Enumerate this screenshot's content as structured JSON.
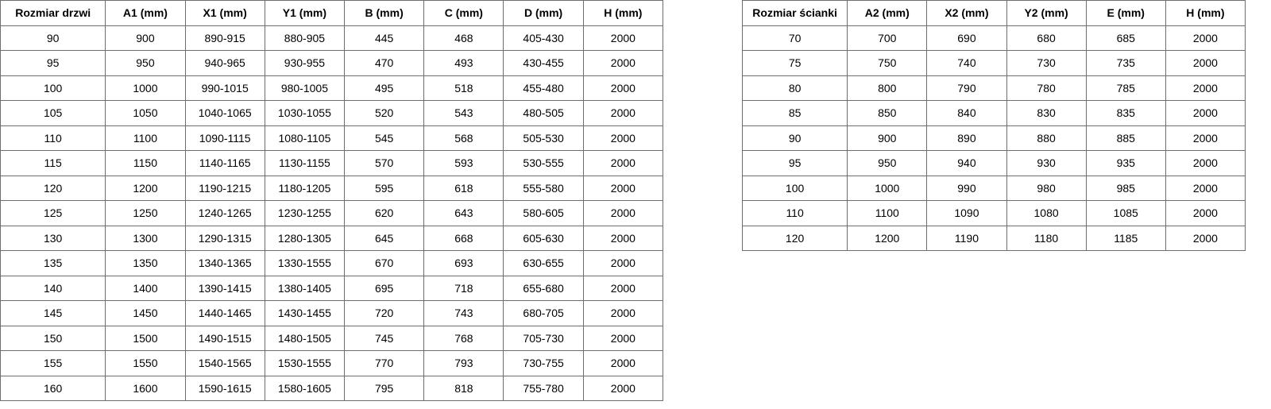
{
  "door_table": {
    "headers": [
      "Rozmiar drzwi",
      "A1 (mm)",
      "X1 (mm)",
      "Y1 (mm)",
      "B (mm)",
      "C (mm)",
      "D (mm)",
      "H (mm)"
    ],
    "rows": [
      [
        "90",
        "900",
        "890-915",
        "880-905",
        "445",
        "468",
        "405-430",
        "2000"
      ],
      [
        "95",
        "950",
        "940-965",
        "930-955",
        "470",
        "493",
        "430-455",
        "2000"
      ],
      [
        "100",
        "1000",
        "990-1015",
        "980-1005",
        "495",
        "518",
        "455-480",
        "2000"
      ],
      [
        "105",
        "1050",
        "1040-1065",
        "1030-1055",
        "520",
        "543",
        "480-505",
        "2000"
      ],
      [
        "110",
        "1100",
        "1090-1115",
        "1080-1105",
        "545",
        "568",
        "505-530",
        "2000"
      ],
      [
        "115",
        "1150",
        "1140-1165",
        "1130-1155",
        "570",
        "593",
        "530-555",
        "2000"
      ],
      [
        "120",
        "1200",
        "1190-1215",
        "1180-1205",
        "595",
        "618",
        "555-580",
        "2000"
      ],
      [
        "125",
        "1250",
        "1240-1265",
        "1230-1255",
        "620",
        "643",
        "580-605",
        "2000"
      ],
      [
        "130",
        "1300",
        "1290-1315",
        "1280-1305",
        "645",
        "668",
        "605-630",
        "2000"
      ],
      [
        "135",
        "1350",
        "1340-1365",
        "1330-1555",
        "670",
        "693",
        "630-655",
        "2000"
      ],
      [
        "140",
        "1400",
        "1390-1415",
        "1380-1405",
        "695",
        "718",
        "655-680",
        "2000"
      ],
      [
        "145",
        "1450",
        "1440-1465",
        "1430-1455",
        "720",
        "743",
        "680-705",
        "2000"
      ],
      [
        "150",
        "1500",
        "1490-1515",
        "1480-1505",
        "745",
        "768",
        "705-730",
        "2000"
      ],
      [
        "155",
        "1550",
        "1540-1565",
        "1530-1555",
        "770",
        "793",
        "730-755",
        "2000"
      ],
      [
        "160",
        "1600",
        "1590-1615",
        "1580-1605",
        "795",
        "818",
        "755-780",
        "2000"
      ]
    ]
  },
  "wall_table": {
    "headers": [
      "Rozmiar ścianki",
      "A2 (mm)",
      "X2 (mm)",
      "Y2 (mm)",
      "E (mm)",
      "H (mm)"
    ],
    "rows": [
      [
        "70",
        "700",
        "690",
        "680",
        "685",
        "2000"
      ],
      [
        "75",
        "750",
        "740",
        "730",
        "735",
        "2000"
      ],
      [
        "80",
        "800",
        "790",
        "780",
        "785",
        "2000"
      ],
      [
        "85",
        "850",
        "840",
        "830",
        "835",
        "2000"
      ],
      [
        "90",
        "900",
        "890",
        "880",
        "885",
        "2000"
      ],
      [
        "95",
        "950",
        "940",
        "930",
        "935",
        "2000"
      ],
      [
        "100",
        "1000",
        "990",
        "980",
        "985",
        "2000"
      ],
      [
        "110",
        "1100",
        "1090",
        "1080",
        "1085",
        "2000"
      ],
      [
        "120",
        "1200",
        "1190",
        "1180",
        "1185",
        "2000"
      ]
    ]
  }
}
